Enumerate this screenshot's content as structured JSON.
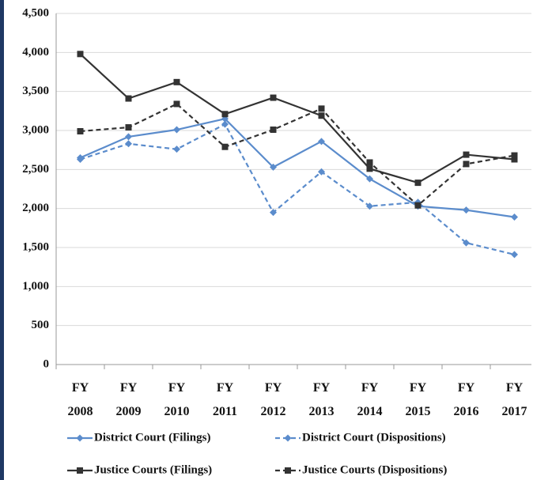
{
  "chart_data": {
    "type": "line",
    "categories": [
      "FY 2008",
      "FY 2009",
      "FY 2010",
      "FY 2011",
      "FY 2012",
      "FY 2013",
      "FY 2014",
      "FY 2015",
      "FY 2016",
      "FY 2017"
    ],
    "series": [
      {
        "name": "District Court (Filings)",
        "color": "#5b8ccc",
        "dash": false,
        "marker": "diamond",
        "values": [
          2650,
          2920,
          3010,
          3150,
          2530,
          2860,
          2380,
          2030,
          1980,
          1890
        ]
      },
      {
        "name": "District Court (Dispositions)",
        "color": "#5b8ccc",
        "dash": true,
        "marker": "diamond",
        "values": [
          2630,
          2830,
          2760,
          3080,
          1950,
          2470,
          2030,
          2080,
          1560,
          1410
        ]
      },
      {
        "name": "Justice Courts (Filings)",
        "color": "#333333",
        "dash": false,
        "marker": "square",
        "values": [
          3980,
          3410,
          3620,
          3210,
          3420,
          3190,
          2510,
          2330,
          2690,
          2630
        ]
      },
      {
        "name": "Justice Courts (Dispositions)",
        "color": "#333333",
        "dash": true,
        "marker": "square",
        "values": [
          2990,
          3040,
          3340,
          2790,
          3010,
          3280,
          2590,
          2040,
          2570,
          2680
        ]
      }
    ],
    "ylim": [
      0,
      4500
    ],
    "yticks": [
      0,
      500,
      {
        "value": 1000,
        "label": "1,000"
      },
      {
        "value": 1500,
        "label": "1,500"
      },
      {
        "value": 2000,
        "label": "2,000"
      },
      {
        "value": 2500,
        "label": "2,500"
      },
      {
        "value": 3000,
        "label": "3,000"
      },
      {
        "value": 3500,
        "label": "3,500"
      },
      {
        "value": 4000,
        "label": "4,000"
      },
      {
        "value": 4500,
        "label": "4,500"
      }
    ],
    "grid": true,
    "legend": "bottom"
  }
}
